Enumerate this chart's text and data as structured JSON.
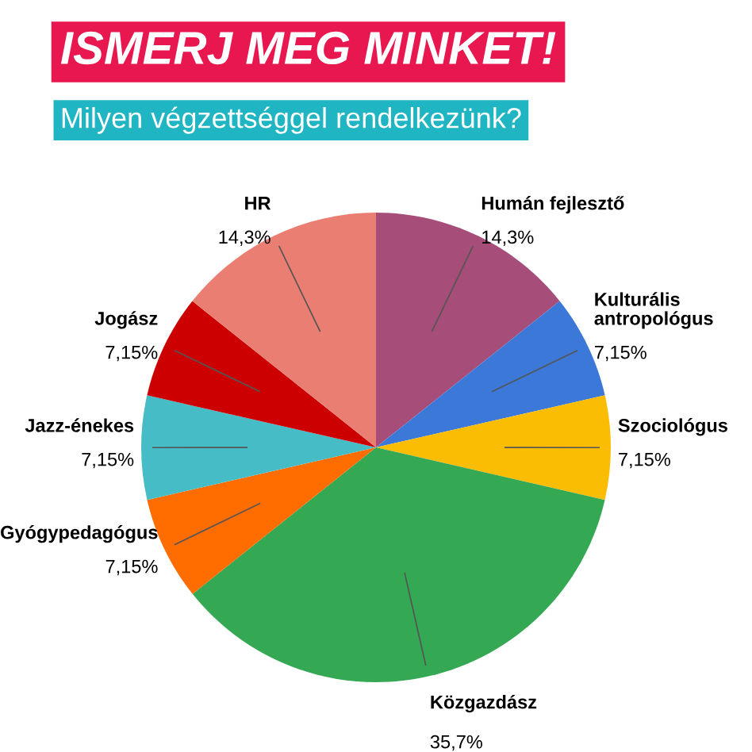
{
  "chart_data": {
    "type": "pie",
    "title": "ISMERJ MEG MINKET!",
    "subtitle": "Milyen végzettséggel rendelkezünk?",
    "categories": [
      "Humán fejlesztő",
      "Kulturális\nantropológus",
      "Szociológus",
      "Közgazdász",
      "Gyógypedagógus",
      "Jazz-énekes",
      "Jogász",
      "HR"
    ],
    "values": [
      14.3,
      7.15,
      7.15,
      35.7,
      7.15,
      7.15,
      7.15,
      14.3
    ],
    "value_labels": [
      "14,3%",
      "7,15%",
      "7,15%",
      "35,7%",
      "7,15%",
      "7,15%",
      "7,15%",
      "14,3%"
    ],
    "colors": [
      "#a64d79",
      "#3c78d8",
      "#fbbc04",
      "#34a853",
      "#ff6d01",
      "#46bdc6",
      "#cc0000",
      "#ea7e72"
    ],
    "legend": false
  }
}
